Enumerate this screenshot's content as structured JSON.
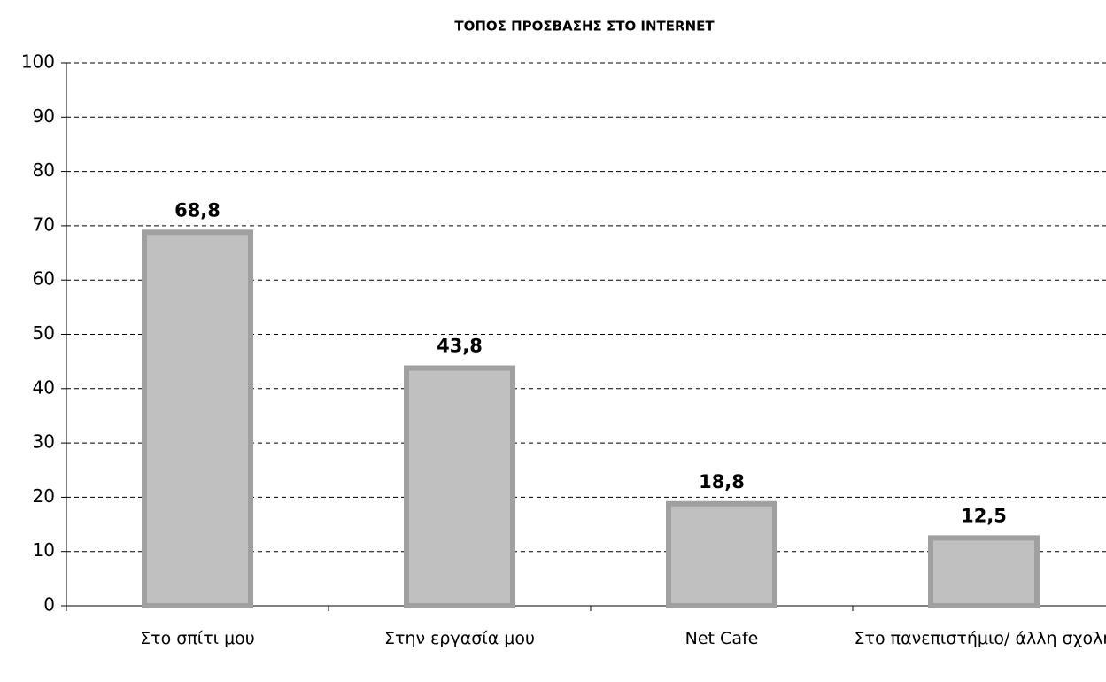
{
  "chart_data": {
    "type": "bar",
    "title": "ΤΟΠΟΣ ΠΡΟΣΒΑΣΗΣ ΣΤΟ INTERNET",
    "categories": [
      "Στο σπίτι μου",
      "Στην εργασία μου",
      "Net Cafe",
      "Στο πανεπιστήμιο/ άλλη σχολή"
    ],
    "values": [
      68.8,
      43.8,
      18.8,
      12.5
    ],
    "value_labels": [
      "68,8",
      "43,8",
      "18,8",
      "12,5"
    ],
    "color": "#c0c0c0",
    "ylim": [
      0,
      100
    ],
    "yticks": [
      0,
      10,
      20,
      30,
      40,
      50,
      60,
      70,
      80,
      90,
      100
    ],
    "grid": true
  }
}
